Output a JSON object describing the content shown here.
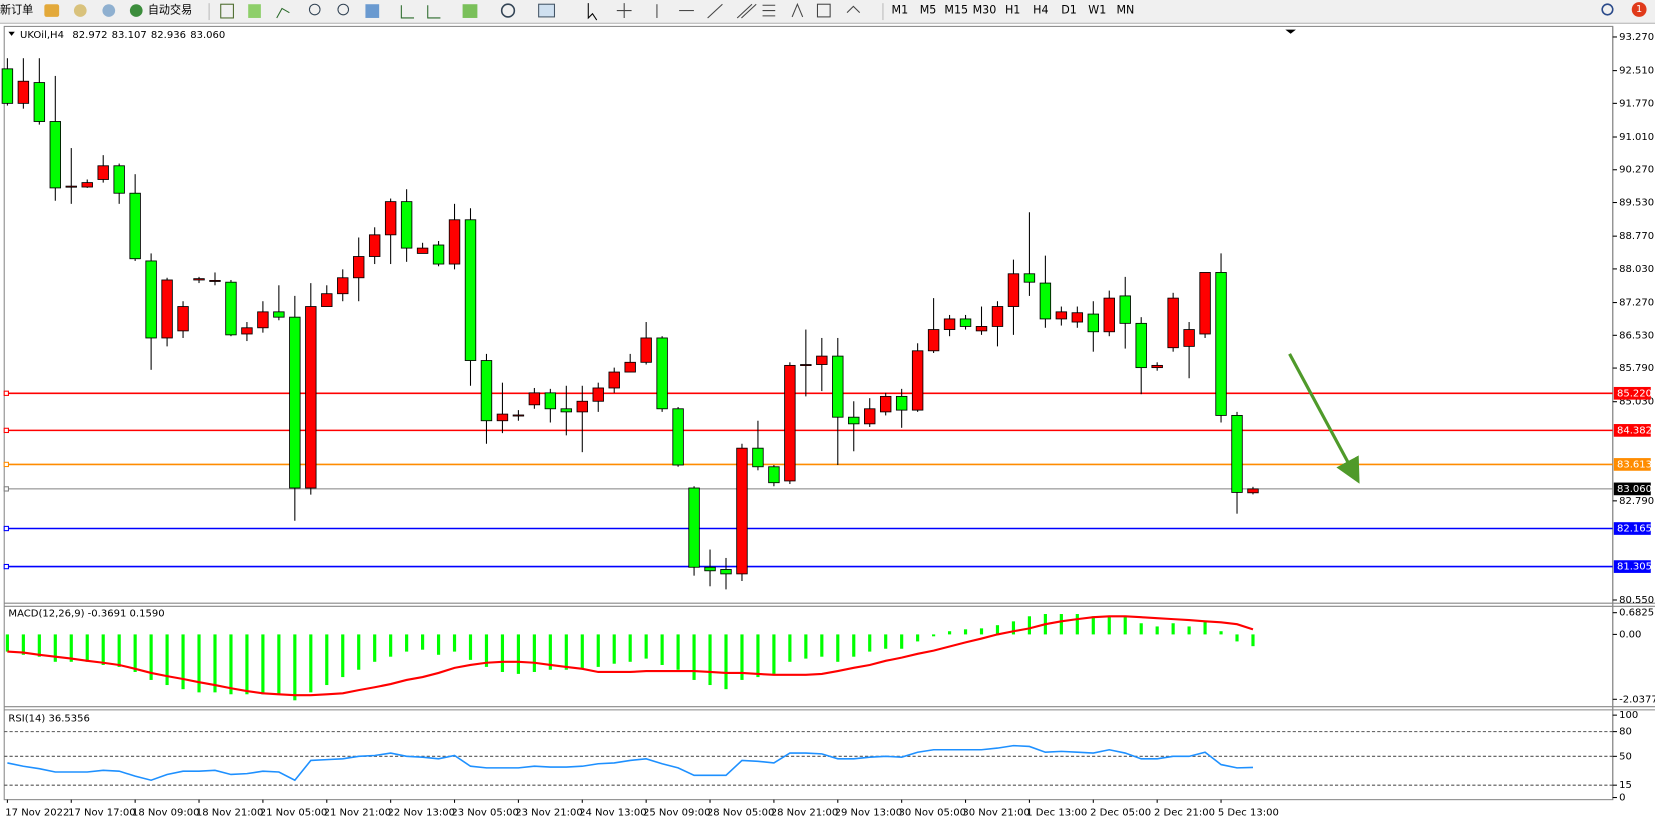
{
  "toolbar": {
    "new_order": "新订单",
    "auto_trading": "自动交易",
    "timeframes": [
      "M1",
      "M5",
      "M15",
      "M30",
      "H1",
      "H4",
      "D1",
      "W1",
      "MN"
    ],
    "badge": "1"
  },
  "chart": {
    "symbol": "UKOil,H4",
    "ohlc": [
      "82.972",
      "83.107",
      "82.936",
      "83.060"
    ],
    "up_color": "#ff0000",
    "down_color": "#00ff00",
    "candles": [
      [
        92.55,
        92.79,
        91.72,
        91.77
      ],
      [
        91.77,
        92.79,
        91.65,
        92.27
      ],
      [
        92.24,
        92.79,
        91.29,
        91.36
      ],
      [
        91.36,
        92.39,
        89.57,
        89.86
      ],
      [
        89.88,
        90.76,
        89.5,
        89.9
      ],
      [
        89.88,
        90.05,
        89.86,
        89.98
      ],
      [
        90.05,
        90.6,
        89.98,
        90.36
      ],
      [
        90.36,
        90.41,
        89.5,
        89.74
      ],
      [
        89.74,
        90.17,
        88.21,
        88.26
      ],
      [
        88.21,
        88.38,
        85.75,
        86.47
      ],
      [
        86.47,
        87.83,
        86.28,
        87.78
      ],
      [
        86.63,
        87.3,
        86.47,
        87.18
      ],
      [
        87.78,
        87.85,
        87.71,
        87.81
      ],
      [
        87.76,
        87.95,
        87.66,
        87.77
      ],
      [
        87.73,
        87.78,
        86.51,
        86.54
      ],
      [
        86.56,
        86.83,
        86.4,
        86.7
      ],
      [
        86.7,
        87.3,
        86.59,
        87.06
      ],
      [
        87.06,
        87.66,
        86.87,
        86.94
      ],
      [
        86.94,
        87.42,
        82.34,
        83.08
      ],
      [
        83.08,
        87.71,
        82.93,
        87.18
      ],
      [
        87.18,
        87.66,
        87.18,
        87.47
      ],
      [
        87.47,
        88.02,
        87.3,
        87.83
      ],
      [
        87.83,
        88.74,
        87.3,
        88.31
      ],
      [
        88.31,
        88.97,
        88.14,
        88.8
      ],
      [
        88.8,
        89.62,
        88.14,
        89.55
      ],
      [
        89.55,
        89.83,
        88.19,
        88.5
      ],
      [
        88.38,
        88.62,
        88.38,
        88.5
      ],
      [
        88.57,
        88.66,
        88.09,
        88.14
      ],
      [
        88.14,
        89.5,
        88.02,
        89.14
      ],
      [
        89.14,
        89.4,
        85.39,
        85.96
      ],
      [
        85.96,
        86.11,
        84.08,
        84.6
      ],
      [
        84.6,
        85.46,
        84.32,
        84.75
      ],
      [
        84.72,
        84.84,
        84.6,
        84.73
      ],
      [
        84.96,
        85.34,
        84.87,
        85.23
      ],
      [
        85.23,
        85.32,
        84.56,
        84.87
      ],
      [
        84.87,
        85.39,
        84.27,
        84.8
      ],
      [
        84.8,
        85.39,
        83.89,
        85.04
      ],
      [
        85.04,
        85.46,
        84.8,
        85.34
      ],
      [
        85.34,
        85.8,
        85.23,
        85.7
      ],
      [
        85.7,
        86.11,
        85.7,
        85.92
      ],
      [
        85.92,
        86.83,
        85.87,
        86.47
      ],
      [
        86.47,
        86.51,
        84.8,
        84.87
      ],
      [
        84.87,
        84.91,
        83.56,
        83.6
      ],
      [
        83.08,
        83.12,
        81.1,
        81.29
      ],
      [
        81.29,
        81.69,
        80.86,
        81.21
      ],
      [
        81.24,
        81.5,
        80.79,
        81.14
      ],
      [
        81.14,
        84.08,
        80.98,
        83.98
      ],
      [
        83.98,
        84.6,
        83.48,
        83.56
      ],
      [
        83.56,
        83.6,
        83.12,
        83.2
      ],
      [
        83.24,
        85.92,
        83.17,
        85.85
      ],
      [
        85.85,
        86.66,
        85.15,
        85.87
      ],
      [
        85.87,
        86.47,
        85.27,
        86.06
      ],
      [
        86.06,
        86.47,
        83.6,
        84.68
      ],
      [
        84.68,
        85.04,
        83.91,
        84.53
      ],
      [
        84.53,
        85.11,
        84.46,
        84.87
      ],
      [
        84.8,
        85.23,
        84.72,
        85.15
      ],
      [
        85.15,
        85.32,
        84.44,
        84.84
      ],
      [
        84.84,
        86.35,
        84.8,
        86.18
      ],
      [
        86.18,
        87.37,
        86.13,
        86.66
      ],
      [
        86.66,
        86.99,
        86.51,
        86.9
      ],
      [
        86.9,
        86.99,
        86.66,
        86.73
      ],
      [
        86.63,
        87.18,
        86.54,
        86.73
      ],
      [
        86.73,
        87.3,
        86.28,
        87.18
      ],
      [
        87.18,
        88.24,
        86.54,
        87.92
      ],
      [
        87.92,
        89.31,
        87.42,
        87.73
      ],
      [
        87.71,
        88.33,
        86.7,
        86.9
      ],
      [
        86.9,
        87.18,
        86.75,
        87.06
      ],
      [
        86.83,
        87.18,
        86.7,
        87.04
      ],
      [
        87.01,
        87.3,
        86.16,
        86.61
      ],
      [
        86.61,
        87.54,
        86.51,
        87.37
      ],
      [
        87.42,
        87.85,
        86.23,
        86.8
      ],
      [
        86.8,
        86.94,
        85.2,
        85.8
      ],
      [
        85.8,
        85.92,
        85.73,
        85.85
      ],
      [
        86.25,
        87.49,
        86.16,
        87.37
      ],
      [
        86.28,
        86.83,
        85.56,
        86.66
      ],
      [
        86.56,
        87.95,
        86.47,
        87.95
      ],
      [
        87.95,
        88.38,
        84.56,
        84.72
      ],
      [
        84.72,
        84.8,
        82.5,
        82.98
      ],
      [
        82.972,
        83.107,
        82.936,
        83.06
      ]
    ],
    "ylim": [
      93.27,
      80.55
    ],
    "yticks": [
      {
        "value": 93.27,
        "label": "93.270"
      },
      {
        "value": 92.51,
        "label": "92.510"
      },
      {
        "value": 91.77,
        "label": "91.770"
      },
      {
        "value": 91.01,
        "label": "91.010"
      },
      {
        "value": 90.27,
        "label": "90.270"
      },
      {
        "value": 89.53,
        "label": "89.530"
      },
      {
        "value": 88.77,
        "label": "88.770"
      },
      {
        "value": 88.03,
        "label": "88.030"
      },
      {
        "value": 87.27,
        "label": "87.270"
      },
      {
        "value": 86.53,
        "label": "86.530"
      },
      {
        "value": 85.79,
        "label": "85.790"
      },
      {
        "value": 85.03,
        "label": "85.030"
      },
      {
        "value": 82.79,
        "label": "82.790"
      },
      {
        "value": 80.55,
        "label": "80.550"
      }
    ],
    "levels": [
      {
        "value": 85.22,
        "label": "85.220",
        "color": "#ff0000"
      },
      {
        "value": 84.382,
        "label": "84.382",
        "color": "#ff0000"
      },
      {
        "value": 83.613,
        "label": "83.613",
        "color": "#ff8c00"
      },
      {
        "value": 83.06,
        "label": "83.060",
        "color": "#808080"
      },
      {
        "value": 82.165,
        "label": "82.165",
        "color": "#0000ff"
      },
      {
        "value": 81.305,
        "label": "81.305",
        "color": "#0000ff"
      }
    ],
    "time_labels": [
      "17 Nov 2022",
      "17 Nov 17:00",
      "18 Nov 09:00",
      "18 Nov 21:00",
      "21 Nov 05:00",
      "21 Nov 21:00",
      "22 Nov 13:00",
      "23 Nov 05:00",
      "23 Nov 21:00",
      "24 Nov 13:00",
      "25 Nov 09:00",
      "28 Nov 05:00",
      "28 Nov 21:00",
      "29 Nov 13:00",
      "30 Nov 05:00",
      "30 Nov 21:00",
      "1 Dec 13:00",
      "2 Dec 05:00",
      "2 Dec 21:00",
      "5 Dec 13:00"
    ]
  },
  "macd": {
    "title": "MACD(12,26,9) -0.3691 0.1590",
    "hist_color": "#00ff00",
    "signal_color": "#ff0000",
    "ylim": [
      0.6825,
      -2.0377
    ],
    "yticks": [
      0.6825,
      {
        "value": 0,
        "label": "0.00"
      },
      -2.0377
    ],
    "histogram": [
      -0.54,
      -0.64,
      -0.7,
      -0.86,
      -0.86,
      -0.86,
      -0.96,
      -1.02,
      -1.18,
      -1.43,
      -1.59,
      -1.72,
      -1.82,
      -1.82,
      -1.88,
      -1.88,
      -1.88,
      -1.88,
      -2.07,
      -1.82,
      -1.59,
      -1.34,
      -1.11,
      -0.86,
      -0.7,
      -0.54,
      -0.48,
      -0.64,
      -0.54,
      -0.8,
      -1.02,
      -1.18,
      -1.24,
      -1.18,
      -1.11,
      -1.11,
      -1.08,
      -1.02,
      -0.92,
      -0.86,
      -0.76,
      -0.96,
      -1.11,
      -1.43,
      -1.59,
      -1.72,
      -1.43,
      -1.34,
      -1.24,
      -0.86,
      -0.76,
      -0.7,
      -0.86,
      -0.7,
      -0.54,
      -0.45,
      -0.45,
      -0.22,
      -0.06,
      0.1,
      0.16,
      0.19,
      0.29,
      0.41,
      0.57,
      0.64,
      0.64,
      0.64,
      0.57,
      0.57,
      0.57,
      0.35,
      0.25,
      0.35,
      0.25,
      0.41,
      0.1,
      -0.22,
      -0.3691
    ],
    "signal": [
      -0.54,
      -0.57,
      -0.64,
      -0.7,
      -0.76,
      -0.83,
      -0.89,
      -0.96,
      -1.08,
      -1.21,
      -1.31,
      -1.4,
      -1.5,
      -1.59,
      -1.69,
      -1.78,
      -1.85,
      -1.88,
      -1.91,
      -1.91,
      -1.88,
      -1.85,
      -1.75,
      -1.66,
      -1.56,
      -1.43,
      -1.34,
      -1.21,
      -1.05,
      -0.96,
      -0.89,
      -0.86,
      -0.86,
      -0.89,
      -0.96,
      -1.02,
      -1.08,
      -1.18,
      -1.18,
      -1.18,
      -1.15,
      -1.15,
      -1.15,
      -1.15,
      -1.18,
      -1.21,
      -1.21,
      -1.24,
      -1.27,
      -1.27,
      -1.27,
      -1.24,
      -1.15,
      -1.05,
      -0.96,
      -0.83,
      -0.73,
      -0.61,
      -0.51,
      -0.38,
      -0.25,
      -0.13,
      0.0,
      0.1,
      0.19,
      0.32,
      0.41,
      0.48,
      0.54,
      0.57,
      0.57,
      0.54,
      0.51,
      0.48,
      0.45,
      0.41,
      0.38,
      0.32,
      0.159
    ]
  },
  "rsi": {
    "title": "RSI(14) 36.5356",
    "color": "#1e90ff",
    "ylim": [
      100,
      0
    ],
    "yticks": [
      100,
      80,
      50,
      15,
      0
    ],
    "levels": [
      80,
      50,
      15
    ],
    "values": [
      42,
      38,
      35,
      31,
      31,
      31,
      33,
      32,
      26,
      21,
      28,
      32,
      32,
      33,
      28,
      29,
      32,
      31,
      21,
      45,
      46,
      47,
      50,
      51,
      54,
      50,
      49,
      47,
      51,
      38,
      36,
      36,
      36,
      38,
      37,
      37,
      38,
      41,
      42,
      45,
      47,
      41,
      36,
      27,
      27,
      27,
      45,
      44,
      42,
      54,
      54,
      53,
      47,
      47,
      49,
      50,
      49,
      55,
      58,
      58,
      58,
      58,
      60,
      63,
      62,
      55,
      56,
      55,
      54,
      58,
      54,
      47,
      47,
      50,
      50,
      55,
      40,
      36,
      36.5356
    ]
  }
}
